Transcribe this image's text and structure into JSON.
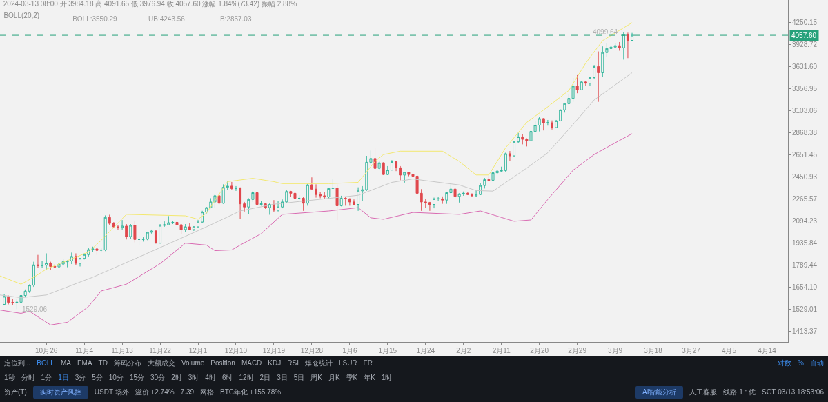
{
  "chart_data": {
    "type": "candlestick",
    "title": "2024-03-13 08:00 开 3984.18 高 4091.65 低 3976.94 收 4057.60 涨幅 1.84%(73.42) 振幅 2.88%",
    "legend_title": "BOLL(20,2)",
    "legend": "top left",
    "x": [
      "2023-10-16",
      "2023-10-17",
      "2023-10-18",
      "2023-10-19",
      "2023-10-20",
      "2023-10-21",
      "2023-10-22",
      "2023-10-23",
      "2023-10-24",
      "2023-10-25",
      "2023-10-26",
      "2023-10-27",
      "2023-10-28",
      "2023-10-29",
      "2023-10-30",
      "2023-10-31",
      "2023-11-01",
      "2023-11-02",
      "2023-11-03",
      "2023-11-04",
      "2023-11-05",
      "2023-11-06",
      "2023-11-07",
      "2023-11-08",
      "2023-11-09",
      "2023-11-10",
      "2023-11-11",
      "2023-11-12",
      "2023-11-13",
      "2023-11-14",
      "2023-11-15",
      "2023-11-16",
      "2023-11-17",
      "2023-11-18",
      "2023-11-19",
      "2023-11-20",
      "2023-11-21",
      "2023-11-22",
      "2023-11-23",
      "2023-11-24",
      "2023-11-25",
      "2023-11-26",
      "2023-11-27",
      "2023-11-28",
      "2023-11-29",
      "2023-11-30",
      "2023-12-01",
      "2023-12-02",
      "2023-12-03",
      "2023-12-04",
      "2023-12-05",
      "2023-12-06",
      "2023-12-07",
      "2023-12-08",
      "2023-12-09",
      "2023-12-10",
      "2023-12-11",
      "2023-12-12",
      "2023-12-13",
      "2023-12-14",
      "2023-12-15",
      "2023-12-16",
      "2023-12-17",
      "2023-12-18",
      "2023-12-19",
      "2023-12-20",
      "2023-12-21",
      "2023-12-22",
      "2023-12-23",
      "2023-12-24",
      "2023-12-25",
      "2023-12-26",
      "2023-12-27",
      "2023-12-28",
      "2023-12-29",
      "2023-12-30",
      "2023-12-31",
      "2024-01-01",
      "2024-01-02",
      "2024-01-03",
      "2024-01-04",
      "2024-01-05",
      "2024-01-06",
      "2024-01-07",
      "2024-01-08",
      "2024-01-09",
      "2024-01-10",
      "2024-01-11",
      "2024-01-12",
      "2024-01-13",
      "2024-01-14",
      "2024-01-15",
      "2024-01-16",
      "2024-01-17",
      "2024-01-18",
      "2024-01-19",
      "2024-01-20",
      "2024-01-21",
      "2024-01-22",
      "2024-01-23",
      "2024-01-24",
      "2024-01-25",
      "2024-01-26",
      "2024-01-27",
      "2024-01-28",
      "2024-01-29",
      "2024-01-30",
      "2024-01-31",
      "2024-02-01",
      "2024-02-02",
      "2024-02-03",
      "2024-02-04",
      "2024-02-05",
      "2024-02-06",
      "2024-02-07",
      "2024-02-08",
      "2024-02-09",
      "2024-02-10",
      "2024-02-11",
      "2024-02-12",
      "2024-02-13",
      "2024-02-14",
      "2024-02-15",
      "2024-02-16",
      "2024-02-17",
      "2024-02-18",
      "2024-02-19",
      "2024-02-20",
      "2024-02-21",
      "2024-02-22",
      "2024-02-23",
      "2024-02-24",
      "2024-02-25",
      "2024-02-26",
      "2024-02-27",
      "2024-02-28",
      "2024-02-29",
      "2024-03-01",
      "2024-03-02",
      "2024-03-03",
      "2024-03-04",
      "2024-03-05",
      "2024-03-06",
      "2024-03-07",
      "2024-03-08",
      "2024-03-09",
      "2024-03-10",
      "2024-03-11",
      "2024-03-12",
      "2024-03-13"
    ],
    "ohlc": [
      [
        1555,
        1615,
        1550,
        1600
      ],
      [
        1600,
        1605,
        1555,
        1566
      ],
      [
        1566,
        1585,
        1550,
        1565
      ],
      [
        1565,
        1585,
        1529.06,
        1567
      ],
      [
        1567,
        1620,
        1560,
        1605
      ],
      [
        1605,
        1640,
        1595,
        1630
      ],
      [
        1630,
        1670,
        1620,
        1665
      ],
      [
        1665,
        1810,
        1655,
        1790
      ],
      [
        1790,
        1855,
        1770,
        1785
      ],
      [
        1785,
        1815,
        1770,
        1788
      ],
      [
        1788,
        1865,
        1760,
        1802
      ],
      [
        1802,
        1810,
        1760,
        1780
      ],
      [
        1780,
        1795,
        1770,
        1777
      ],
      [
        1777,
        1820,
        1770,
        1795
      ],
      [
        1795,
        1825,
        1785,
        1810
      ],
      [
        1810,
        1820,
        1775,
        1815
      ],
      [
        1815,
        1870,
        1795,
        1845
      ],
      [
        1845,
        1865,
        1790,
        1800
      ],
      [
        1800,
        1835,
        1780,
        1832
      ],
      [
        1832,
        1865,
        1825,
        1857
      ],
      [
        1857,
        1900,
        1845,
        1890
      ],
      [
        1890,
        1910,
        1875,
        1895
      ],
      [
        1895,
        1905,
        1855,
        1885
      ],
      [
        1885,
        1900,
        1870,
        1888
      ],
      [
        1888,
        2135,
        1880,
        2120
      ],
      [
        2120,
        2140,
        2060,
        2075
      ],
      [
        2075,
        2085,
        2040,
        2050
      ],
      [
        2050,
        2065,
        2030,
        2045
      ],
      [
        2045,
        2100,
        2030,
        2055
      ],
      [
        2055,
        2070,
        1960,
        1980
      ],
      [
        1980,
        2070,
        1965,
        2060
      ],
      [
        2060,
        2090,
        1940,
        1960
      ],
      [
        1960,
        1985,
        1920,
        1960
      ],
      [
        1960,
        1975,
        1945,
        1962
      ],
      [
        1962,
        2015,
        1955,
        2010
      ],
      [
        2010,
        2030,
        1995,
        2020
      ],
      [
        2020,
        2025,
        1930,
        1935
      ],
      [
        1935,
        2070,
        1930,
        2060
      ],
      [
        2060,
        2090,
        2050,
        2065
      ],
      [
        2065,
        2130,
        2060,
        2080
      ],
      [
        2080,
        2095,
        2070,
        2083
      ],
      [
        2083,
        2090,
        2050,
        2065
      ],
      [
        2065,
        2070,
        2000,
        2030
      ],
      [
        2030,
        2070,
        2010,
        2050
      ],
      [
        2050,
        2075,
        2025,
        2030
      ],
      [
        2030,
        2055,
        2020,
        2050
      ],
      [
        2050,
        2100,
        2045,
        2085
      ],
      [
        2085,
        2170,
        2080,
        2160
      ],
      [
        2160,
        2200,
        2150,
        2195
      ],
      [
        2195,
        2270,
        2190,
        2240
      ],
      [
        2240,
        2305,
        2195,
        2290
      ],
      [
        2290,
        2310,
        2220,
        2230
      ],
      [
        2230,
        2385,
        2225,
        2360
      ],
      [
        2360,
        2410,
        2340,
        2370
      ],
      [
        2370,
        2405,
        2335,
        2350
      ],
      [
        2350,
        2370,
        2330,
        2355
      ],
      [
        2355,
        2360,
        2110,
        2225
      ],
      [
        2225,
        2240,
        2165,
        2200
      ],
      [
        2200,
        2270,
        2145,
        2260
      ],
      [
        2260,
        2330,
        2240,
        2315
      ],
      [
        2315,
        2320,
        2210,
        2220
      ],
      [
        2220,
        2245,
        2210,
        2225
      ],
      [
        2225,
        2230,
        2185,
        2195
      ],
      [
        2195,
        2230,
        2140,
        2220
      ],
      [
        2220,
        2255,
        2160,
        2175
      ],
      [
        2175,
        2245,
        2165,
        2200
      ],
      [
        2200,
        2260,
        2190,
        2240
      ],
      [
        2240,
        2335,
        2230,
        2325
      ],
      [
        2325,
        2330,
        2280,
        2310
      ],
      [
        2310,
        2320,
        2255,
        2270
      ],
      [
        2270,
        2295,
        2255,
        2270
      ],
      [
        2270,
        2280,
        2170,
        2230
      ],
      [
        2230,
        2390,
        2210,
        2380
      ],
      [
        2380,
        2445,
        2340,
        2345
      ],
      [
        2345,
        2385,
        2275,
        2300
      ],
      [
        2300,
        2320,
        2270,
        2290
      ],
      [
        2290,
        2320,
        2265,
        2280
      ],
      [
        2280,
        2355,
        2265,
        2350
      ],
      [
        2350,
        2430,
        2345,
        2355
      ],
      [
        2355,
        2385,
        2100,
        2210
      ],
      [
        2210,
        2290,
        2205,
        2270
      ],
      [
        2270,
        2280,
        2210,
        2265
      ],
      [
        2265,
        2270,
        2210,
        2240
      ],
      [
        2240,
        2260,
        2215,
        2220
      ],
      [
        2220,
        2360,
        2170,
        2330
      ],
      [
        2330,
        2370,
        2250,
        2340
      ],
      [
        2340,
        2640,
        2330,
        2580
      ],
      [
        2580,
        2690,
        2560,
        2615
      ],
      [
        2615,
        2715,
        2510,
        2525
      ],
      [
        2525,
        2590,
        2515,
        2575
      ],
      [
        2575,
        2580,
        2465,
        2470
      ],
      [
        2470,
        2545,
        2465,
        2510
      ],
      [
        2510,
        2600,
        2505,
        2585
      ],
      [
        2585,
        2595,
        2500,
        2530
      ],
      [
        2530,
        2545,
        2420,
        2465
      ],
      [
        2465,
        2495,
        2400,
        2490
      ],
      [
        2490,
        2495,
        2455,
        2470
      ],
      [
        2470,
        2475,
        2445,
        2455
      ],
      [
        2455,
        2465,
        2300,
        2310
      ],
      [
        2310,
        2345,
        2170,
        2240
      ],
      [
        2240,
        2265,
        2195,
        2235
      ],
      [
        2235,
        2240,
        2170,
        2220
      ],
      [
        2220,
        2275,
        2190,
        2265
      ],
      [
        2265,
        2280,
        2250,
        2265
      ],
      [
        2265,
        2285,
        2225,
        2255
      ],
      [
        2255,
        2320,
        2225,
        2315
      ],
      [
        2315,
        2390,
        2300,
        2345
      ],
      [
        2345,
        2350,
        2270,
        2285
      ],
      [
        2285,
        2310,
        2235,
        2305
      ],
      [
        2305,
        2325,
        2290,
        2310
      ],
      [
        2310,
        2320,
        2295,
        2300
      ],
      [
        2300,
        2310,
        2280,
        2290
      ],
      [
        2290,
        2335,
        2280,
        2300
      ],
      [
        2300,
        2395,
        2295,
        2375
      ],
      [
        2375,
        2440,
        2350,
        2425
      ],
      [
        2425,
        2455,
        2410,
        2420
      ],
      [
        2420,
        2510,
        2415,
        2485
      ],
      [
        2485,
        2510,
        2475,
        2500
      ],
      [
        2500,
        2540,
        2495,
        2505
      ],
      [
        2505,
        2670,
        2490,
        2660
      ],
      [
        2660,
        2685,
        2595,
        2640
      ],
      [
        2640,
        2785,
        2635,
        2775
      ],
      [
        2775,
        2865,
        2760,
        2825
      ],
      [
        2825,
        2850,
        2750,
        2800
      ],
      [
        2800,
        2810,
        2730,
        2785
      ],
      [
        2785,
        2895,
        2780,
        2880
      ],
      [
        2880,
        2985,
        2870,
        2945
      ],
      [
        2945,
        3030,
        2880,
        3015
      ],
      [
        3015,
        3020,
        2890,
        2970
      ],
      [
        2970,
        3000,
        2940,
        2970
      ],
      [
        2970,
        2995,
        2900,
        2920
      ],
      [
        2920,
        3000,
        2915,
        2990
      ],
      [
        2990,
        3115,
        2985,
        3110
      ],
      [
        3110,
        3190,
        3080,
        3180
      ],
      [
        3180,
        3290,
        3170,
        3240
      ],
      [
        3240,
        3485,
        3200,
        3385
      ],
      [
        3385,
        3520,
        3300,
        3340
      ],
      [
        3340,
        3450,
        3335,
        3435
      ],
      [
        3435,
        3450,
        3390,
        3420
      ],
      [
        3420,
        3500,
        3385,
        3490
      ],
      [
        3490,
        3650,
        3470,
        3630
      ],
      [
        3630,
        3830,
        3200,
        3550
      ],
      [
        3550,
        3900,
        3500,
        3815
      ],
      [
        3815,
        3940,
        3760,
        3870
      ],
      [
        3870,
        3995,
        3830,
        3890
      ],
      [
        3890,
        3950,
        3880,
        3910
      ],
      [
        3910,
        3960,
        3840,
        3880
      ],
      [
        3880,
        4099.64,
        3720,
        4065
      ],
      [
        4065,
        4095,
        3740,
        3984.18
      ],
      [
        3984.18,
        4091.65,
        3976.94,
        4057.6
      ]
    ],
    "colors": [
      "#2eb49a",
      "#e0474c",
      "#e0474c",
      "#2eb49a",
      "#2eb49a",
      "#2eb49a",
      "#2eb49a",
      "#2eb49a",
      "#e0474c",
      "#2eb49a",
      "#2eb49a",
      "#e0474c",
      "#e0474c",
      "#2eb49a",
      "#2eb49a",
      "#2eb49a",
      "#2eb49a",
      "#e0474c",
      "#2eb49a",
      "#2eb49a",
      "#2eb49a",
      "#2eb49a",
      "#e0474c",
      "#2eb49a",
      "#2eb49a",
      "#e0474c",
      "#e0474c",
      "#e0474c",
      "#2eb49a",
      "#e0474c",
      "#2eb49a",
      "#e0474c",
      "#2eb49a",
      "#2eb49a",
      "#2eb49a",
      "#2eb49a",
      "#e0474c",
      "#2eb49a",
      "#2eb49a",
      "#2eb49a",
      "#2eb49a",
      "#e0474c",
      "#e0474c",
      "#2eb49a",
      "#e0474c",
      "#2eb49a",
      "#2eb49a",
      "#2eb49a",
      "#2eb49a",
      "#2eb49a",
      "#2eb49a",
      "#e0474c",
      "#2eb49a",
      "#2eb49a",
      "#e0474c",
      "#2eb49a",
      "#e0474c",
      "#e0474c",
      "#2eb49a",
      "#2eb49a",
      "#e0474c",
      "#2eb49a",
      "#e0474c",
      "#2eb49a",
      "#e0474c",
      "#2eb49a",
      "#2eb49a",
      "#2eb49a",
      "#e0474c",
      "#e0474c",
      "#2eb49a",
      "#e0474c",
      "#2eb49a",
      "#e0474c",
      "#e0474c",
      "#e0474c",
      "#e0474c",
      "#2eb49a",
      "#2eb49a",
      "#e0474c",
      "#2eb49a",
      "#e0474c",
      "#e0474c",
      "#e0474c",
      "#2eb49a",
      "#2eb49a",
      "#2eb49a",
      "#2eb49a",
      "#e0474c",
      "#2eb49a",
      "#e0474c",
      "#2eb49a",
      "#2eb49a",
      "#e0474c",
      "#e0474c",
      "#2eb49a",
      "#e0474c",
      "#e0474c",
      "#e0474c",
      "#e0474c",
      "#e0474c",
      "#e0474c",
      "#2eb49a",
      "#2eb49a",
      "#e0474c",
      "#2eb49a",
      "#2eb49a",
      "#e0474c",
      "#2eb49a",
      "#2eb49a",
      "#e0474c",
      "#e0474c",
      "#2eb49a",
      "#2eb49a",
      "#2eb49a",
      "#e0474c",
      "#2eb49a",
      "#2eb49a",
      "#2eb49a",
      "#2eb49a",
      "#e0474c",
      "#2eb49a",
      "#2eb49a",
      "#e0474c",
      "#e0474c",
      "#2eb49a",
      "#2eb49a",
      "#2eb49a",
      "#e0474c",
      "#2eb49a",
      "#e0474c",
      "#2eb49a",
      "#2eb49a",
      "#2eb49a",
      "#2eb49a",
      "#2eb49a",
      "#e0474c",
      "#2eb49a",
      "#e0474c",
      "#2eb49a",
      "#2eb49a",
      "#e0474c",
      "#2eb49a",
      "#2eb49a",
      "#2eb49a",
      "#2eb49a",
      "#e0474c",
      "#2eb49a",
      "#e0474c",
      "#2eb49a"
    ],
    "series": [
      {
        "name": "BOLL:3550.29",
        "type": "line",
        "color": "#c8c8c8",
        "x": [
          "2023-10-15",
          "2023-10-20",
          "2023-10-26",
          "2023-11-06",
          "2023-11-16",
          "2023-11-28",
          "2023-12-03",
          "2023-12-11",
          "2023-12-19",
          "2024-01-08",
          "2024-01-16",
          "2024-01-21",
          "2024-02-01",
          "2024-02-05",
          "2024-02-09",
          "2024-02-17",
          "2024-02-22",
          "2024-02-28",
          "2024-03-04",
          "2024-03-13"
        ],
        "values": [
          1608,
          1593,
          1608,
          1713,
          1829,
          1982,
          2050,
          2169,
          2222,
          2294,
          2402,
          2431,
          2380,
          2333,
          2328,
          2527,
          2669,
          2952,
          3222,
          3550
        ]
      },
      {
        "name": "UB:4243.56",
        "type": "line",
        "color": "#f3e870",
        "x": [
          "2023-10-15",
          "2023-10-20",
          "2023-10-23",
          "2023-10-26",
          "2023-11-05",
          "2023-11-08",
          "2023-11-14",
          "2023-11-28",
          "2023-12-01",
          "2023-12-03",
          "2023-12-08",
          "2023-12-14",
          "2023-12-19",
          "2023-12-21",
          "2024-01-01",
          "2024-01-08",
          "2024-01-12",
          "2024-01-14",
          "2024-01-18",
          "2024-01-28",
          "2024-02-01",
          "2024-02-05",
          "2024-02-08",
          "2024-02-12",
          "2024-02-17",
          "2024-02-22",
          "2024-02-27",
          "2024-03-02",
          "2024-03-06",
          "2024-03-13"
        ],
        "values": [
          1721,
          1671,
          1713,
          1763,
          1874,
          1953,
          2143,
          2132,
          2106,
          2153,
          2408,
          2437,
          2408,
          2391,
          2391,
          2402,
          2588,
          2652,
          2684,
          2684,
          2588,
          2466,
          2466,
          2717,
          2974,
          3144,
          3333,
          3674,
          3980,
          4243.56
        ]
      },
      {
        "name": "LB:2857.03",
        "type": "line",
        "color": "#d96bb2",
        "x": [
          "2023-10-15",
          "2023-10-20",
          "2023-10-22",
          "2023-10-27",
          "2023-10-31",
          "2023-11-05",
          "2023-11-08",
          "2023-11-14",
          "2023-11-22",
          "2023-11-28",
          "2023-12-03",
          "2023-12-05",
          "2023-12-09",
          "2023-12-11",
          "2023-12-16",
          "2023-12-21",
          "2024-01-01",
          "2024-01-08",
          "2024-01-11",
          "2024-01-14",
          "2024-01-21",
          "2024-02-01",
          "2024-02-06",
          "2024-02-14",
          "2024-02-18",
          "2024-02-22",
          "2024-02-28",
          "2024-03-04",
          "2024-03-08",
          "2024-03-13"
        ],
        "values": [
          1524,
          1506,
          1517,
          1445,
          1459,
          1543,
          1631,
          1671,
          1798,
          1934,
          1921,
          1883,
          1888,
          1921,
          2001,
          2143,
          2169,
          2195,
          2117,
          2106,
          2158,
          2143,
          2169,
          2091,
          2101,
          2260,
          2508,
          2652,
          2743,
          2857.03
        ]
      }
    ],
    "xlim": [
      "2023-10-15",
      "2024-04-19"
    ],
    "xticks": [
      {
        "value": "2023-10-26",
        "label": "10月26"
      },
      {
        "value": "2023-11-04",
        "label": "11月4"
      },
      {
        "value": "2023-11-13",
        "label": "11月13"
      },
      {
        "value": "2023-11-22",
        "label": "11月22"
      },
      {
        "value": "2023-12-01",
        "label": "12月1"
      },
      {
        "value": "2023-12-10",
        "label": "12月10"
      },
      {
        "value": "2023-12-19",
        "label": "12月19"
      },
      {
        "value": "2023-12-28",
        "label": "12月28"
      },
      {
        "value": "2024-01-06",
        "label": "1月6"
      },
      {
        "value": "2024-01-15",
        "label": "1月15"
      },
      {
        "value": "2024-01-24",
        "label": "1月24"
      },
      {
        "value": "2024-02-02",
        "label": "2月2"
      },
      {
        "value": "2024-02-11",
        "label": "2月11"
      },
      {
        "value": "2024-02-20",
        "label": "2月20"
      },
      {
        "value": "2024-02-29",
        "label": "2月29"
      },
      {
        "value": "2024-03-09",
        "label": "3月9"
      },
      {
        "value": "2024-03-18",
        "label": "3月18"
      },
      {
        "value": "2024-03-27",
        "label": "3月27"
      },
      {
        "value": "2024-04-05",
        "label": "4月5"
      },
      {
        "value": "2024-04-14",
        "label": "4月14"
      }
    ],
    "log": "y",
    "ylim": [
      1360,
      4600
    ],
    "yticks": [
      1413.37,
      1529.01,
      {
        "value": 1654.1,
        "label": "1654.10"
      },
      1789.44,
      1935.84,
      2094.23,
      2265.57,
      2450.93,
      2651.45,
      2868.38,
      3103.06,
      3356.95,
      {
        "value": 3631.6,
        "label": "3631.60"
      },
      3928.72,
      4250.15
    ],
    "ref_lines": [
      {
        "axis": "y",
        "value": 4057.6,
        "label": "4057.60",
        "color": "#26a17b",
        "line_style": "dashed"
      }
    ],
    "annotations": [
      {
        "text": "4099.64",
        "x": "2024-03-11",
        "y": 4099.64
      },
      {
        "text": "1529.06",
        "x": "2023-10-19",
        "y": 1529.06
      },
      "定位到...",
      "BOLL",
      "MA",
      "EMA",
      "TD",
      "筹码分布",
      "大额成交",
      "Volume",
      "Position",
      "MACD",
      "KDJ",
      "RSI",
      "爆仓统计",
      "LSUR",
      "FR",
      "对数",
      "%",
      "自动",
      "1秒",
      "分时",
      "1分",
      "1日",
      "3分",
      "5分",
      "10分",
      "15分",
      "30分",
      "2时",
      "3时",
      "4时",
      "6时",
      "12时",
      "2日",
      "3日",
      "5日",
      "周K",
      "月K",
      "季K",
      "年K",
      "1时",
      "资产(T)",
      "实时资产风控",
      "USDT 场外",
      "溢价 +2.74%",
      "7.39",
      "网格",
      "BTC年化 +155.78%",
      "AI智能分析",
      "人工客服",
      "线路 1 : 优",
      "SGT 03/13 18:53:06"
    ]
  }
}
